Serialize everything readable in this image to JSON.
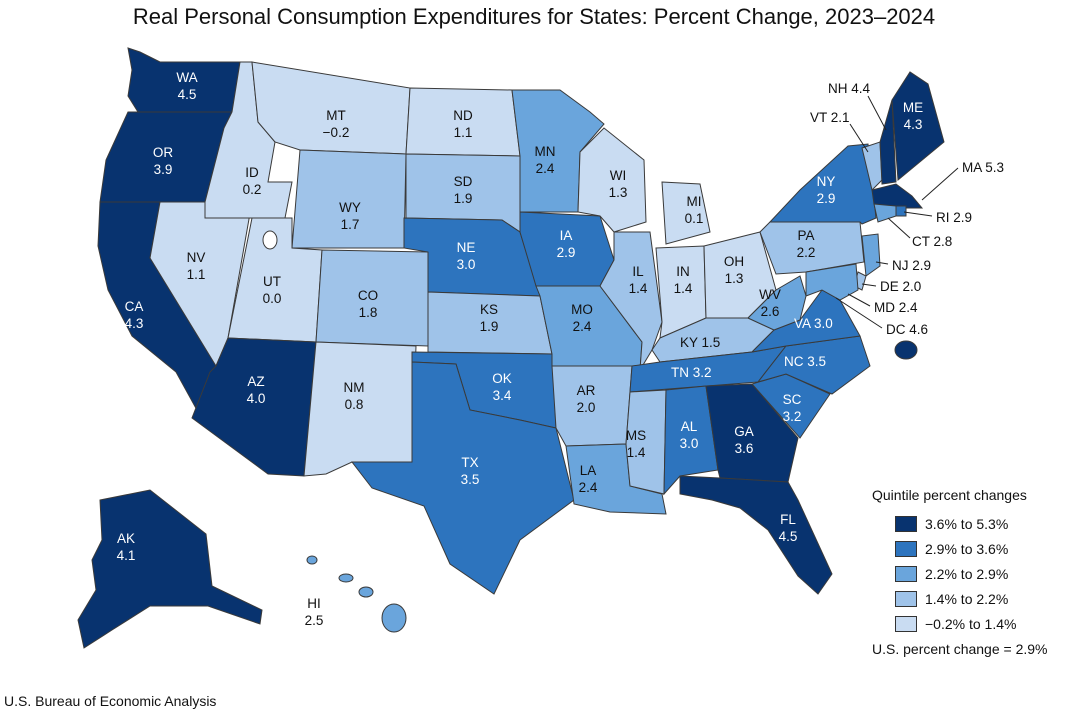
{
  "title": "Real Personal Consumption Expenditures for States: Percent Change, 2023–2024",
  "source": "U.S. Bureau of Economic Analysis",
  "legend": {
    "title": "Quintile percent changes",
    "items": [
      {
        "label": "3.6% to 5.3%",
        "color": "#08336f"
      },
      {
        "label": "2.9% to 3.6%",
        "color": "#2d74be"
      },
      {
        "label": "2.2% to 2.9%",
        "color": "#6aa5dc"
      },
      {
        "label": "1.4% to 2.2%",
        "color": "#9fc3e9"
      },
      {
        "label": "−0.2% to 1.4%",
        "color": "#c9dcf2"
      }
    ]
  },
  "us_note": "U.S. percent change = 2.9%",
  "states": {
    "WA": {
      "name": "WA",
      "value": "4.5",
      "q": 0
    },
    "OR": {
      "name": "OR",
      "value": "3.9",
      "q": 0
    },
    "CA": {
      "name": "CA",
      "value": "4.3",
      "q": 0
    },
    "NV": {
      "name": "NV",
      "value": "1.1",
      "q": 4
    },
    "ID": {
      "name": "ID",
      "value": "0.2",
      "q": 4
    },
    "MT": {
      "name": "MT",
      "value": "−0.2",
      "q": 4
    },
    "WY": {
      "name": "WY",
      "value": "1.7",
      "q": 3
    },
    "UT": {
      "name": "UT",
      "value": "0.0",
      "q": 4
    },
    "AZ": {
      "name": "AZ",
      "value": "4.0",
      "q": 0
    },
    "CO": {
      "name": "CO",
      "value": "1.8",
      "q": 3
    },
    "NM": {
      "name": "NM",
      "value": "0.8",
      "q": 4
    },
    "ND": {
      "name": "ND",
      "value": "1.1",
      "q": 4
    },
    "SD": {
      "name": "SD",
      "value": "1.9",
      "q": 3
    },
    "NE": {
      "name": "NE",
      "value": "3.0",
      "q": 1
    },
    "KS": {
      "name": "KS",
      "value": "1.9",
      "q": 3
    },
    "OK": {
      "name": "OK",
      "value": "3.4",
      "q": 1
    },
    "TX": {
      "name": "TX",
      "value": "3.5",
      "q": 1
    },
    "MN": {
      "name": "MN",
      "value": "2.4",
      "q": 2
    },
    "IA": {
      "name": "IA",
      "value": "2.9",
      "q": 1
    },
    "MO": {
      "name": "MO",
      "value": "2.4",
      "q": 2
    },
    "AR": {
      "name": "AR",
      "value": "2.0",
      "q": 3
    },
    "LA": {
      "name": "LA",
      "value": "2.4",
      "q": 2
    },
    "WI": {
      "name": "WI",
      "value": "1.3",
      "q": 4
    },
    "IL": {
      "name": "IL",
      "value": "1.4",
      "q": 3
    },
    "MI": {
      "name": "MI",
      "value": "0.1",
      "q": 4
    },
    "IN": {
      "name": "IN",
      "value": "1.4",
      "q": 4
    },
    "OH": {
      "name": "OH",
      "value": "1.3",
      "q": 4
    },
    "KY": {
      "name": "KY",
      "value": "1.5",
      "q": 3
    },
    "TN": {
      "name": "TN",
      "value": "3.2",
      "q": 1
    },
    "MS": {
      "name": "MS",
      "value": "1.4",
      "q": 3
    },
    "AL": {
      "name": "AL",
      "value": "3.0",
      "q": 1
    },
    "GA": {
      "name": "GA",
      "value": "3.6",
      "q": 0
    },
    "FL": {
      "name": "FL",
      "value": "4.5",
      "q": 0
    },
    "SC": {
      "name": "SC",
      "value": "3.2",
      "q": 1
    },
    "NC": {
      "name": "NC",
      "value": "3.5",
      "q": 1
    },
    "VA": {
      "name": "VA",
      "value": "3.0",
      "q": 1
    },
    "WV": {
      "name": "WV",
      "value": "2.6",
      "q": 2
    },
    "PA": {
      "name": "PA",
      "value": "2.2",
      "q": 3
    },
    "NY": {
      "name": "NY",
      "value": "2.9",
      "q": 1
    },
    "ME": {
      "name": "ME",
      "value": "4.3",
      "q": 0
    },
    "NH": {
      "name": "NH",
      "value": "4.4",
      "q": 0
    },
    "VT": {
      "name": "VT",
      "value": "2.1",
      "q": 3
    },
    "MA": {
      "name": "MA",
      "value": "5.3",
      "q": 0
    },
    "RI": {
      "name": "RI",
      "value": "2.9",
      "q": 1
    },
    "CT": {
      "name": "CT",
      "value": "2.8",
      "q": 2
    },
    "NJ": {
      "name": "NJ",
      "value": "2.9",
      "q": 2
    },
    "DE": {
      "name": "DE",
      "value": "2.0",
      "q": 3
    },
    "MD": {
      "name": "MD",
      "value": "2.4",
      "q": 2
    },
    "DC": {
      "name": "DC",
      "value": "4.6",
      "q": 0
    },
    "AK": {
      "name": "AK",
      "value": "4.1",
      "q": 0
    },
    "HI": {
      "name": "HI",
      "value": "2.5",
      "q": 2
    }
  }
}
